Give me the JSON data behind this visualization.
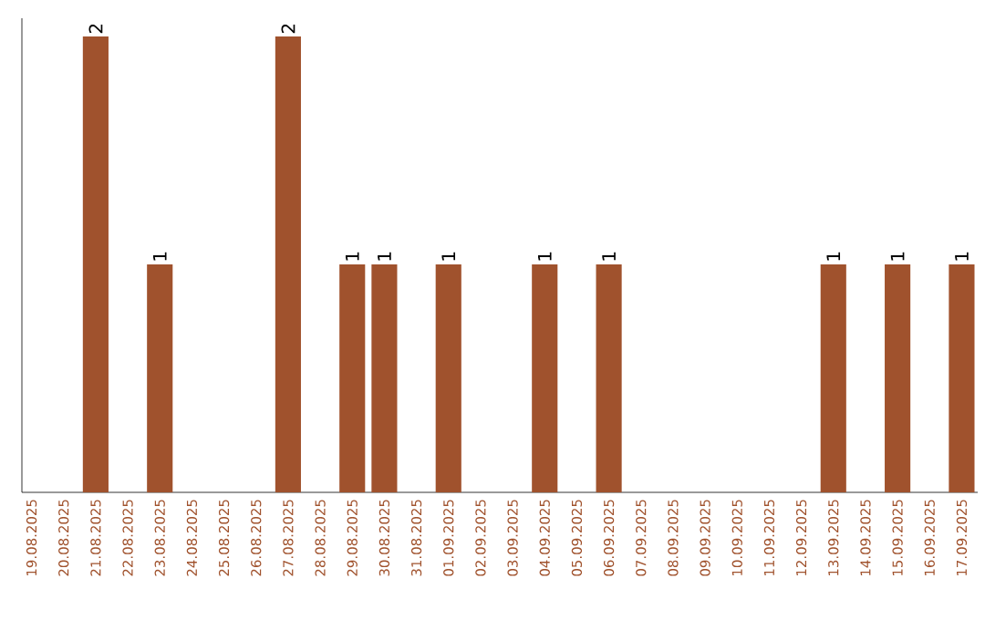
{
  "chart_data": {
    "type": "bar",
    "categories": [
      "19.08.2025",
      "20.08.2025",
      "21.08.2025",
      "22.08.2025",
      "23.08.2025",
      "24.08.2025",
      "25.08.2025",
      "26.08.2025",
      "27.08.2025",
      "28.08.2025",
      "29.08.2025",
      "30.08.2025",
      "31.08.2025",
      "01.09.2025",
      "02.09.2025",
      "03.09.2025",
      "04.09.2025",
      "05.09.2025",
      "06.09.2025",
      "07.09.2025",
      "08.09.2025",
      "09.09.2025",
      "10.09.2025",
      "11.09.2025",
      "12.09.2025",
      "13.09.2025",
      "14.09.2025",
      "15.09.2025",
      "16.09.2025",
      "17.09.2025"
    ],
    "values": [
      0,
      0,
      2,
      0,
      1,
      0,
      0,
      0,
      2,
      0,
      1,
      1,
      0,
      1,
      0,
      0,
      1,
      0,
      1,
      0,
      0,
      0,
      0,
      0,
      0,
      1,
      0,
      1,
      0,
      1
    ],
    "value_labels": [
      null,
      null,
      "2",
      null,
      "1",
      null,
      null,
      null,
      "2",
      null,
      "1",
      "1",
      null,
      "1",
      null,
      null,
      "1",
      null,
      "1",
      null,
      null,
      null,
      null,
      null,
      null,
      "1",
      null,
      "1",
      null,
      "1"
    ],
    "color": "#a0522d",
    "tick_labels": "x",
    "grid": false
  }
}
